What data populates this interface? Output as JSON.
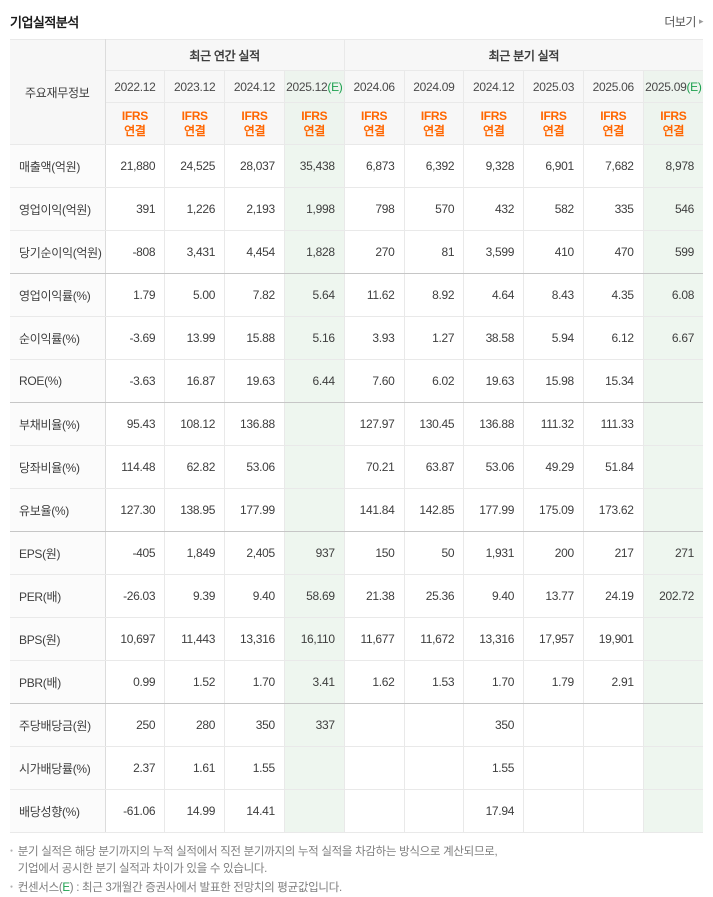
{
  "page": {
    "title": "기업실적분석",
    "more_label": "더보기",
    "more_arrow": "▸"
  },
  "colors": {
    "accent_orange": "#ff6600",
    "estimate_green": "#1ca04e",
    "estimate_bg": "#eef6ef",
    "negative_red": "#ff0000",
    "header_bg": "#f7f7f7"
  },
  "table": {
    "corner_header": "주요재무정보",
    "groups": [
      {
        "label": "최근 연간 실적",
        "span": 4
      },
      {
        "label": "최근 분기 실적",
        "span": 6
      }
    ],
    "ifrs_lines": [
      "IFRS",
      "연결"
    ],
    "columns": [
      {
        "period": "2022.12",
        "suffix": "",
        "estimate": false
      },
      {
        "period": "2023.12",
        "suffix": "",
        "estimate": false
      },
      {
        "period": "2024.12",
        "suffix": "",
        "estimate": false
      },
      {
        "period": "2025.12",
        "suffix": "(E)",
        "estimate": true
      },
      {
        "period": "2024.06",
        "suffix": "",
        "estimate": false
      },
      {
        "period": "2024.09",
        "suffix": "",
        "estimate": false
      },
      {
        "period": "2024.12",
        "suffix": "",
        "estimate": false
      },
      {
        "period": "2025.03",
        "suffix": "",
        "estimate": false
      },
      {
        "period": "2025.06",
        "suffix": "",
        "estimate": false
      },
      {
        "period": "2025.09",
        "suffix": "(E)",
        "estimate": true
      }
    ],
    "rows": [
      {
        "label": "매출액(억원)",
        "group_end": false,
        "values": [
          "21,880",
          "24,525",
          "28,037",
          "35,438",
          "6,873",
          "6,392",
          "9,328",
          "6,901",
          "7,682",
          "8,978"
        ]
      },
      {
        "label": "영업이익(억원)",
        "group_end": false,
        "values": [
          "391",
          "1,226",
          "2,193",
          "1,998",
          "798",
          "570",
          "432",
          "582",
          "335",
          "546"
        ]
      },
      {
        "label": "당기순이익(억원)",
        "group_end": true,
        "values": [
          "-808",
          "3,431",
          "4,454",
          "1,828",
          "270",
          "81",
          "3,599",
          "410",
          "470",
          "599"
        ]
      },
      {
        "label": "영업이익률(%)",
        "group_end": false,
        "values": [
          "1.79",
          "5.00",
          "7.82",
          "5.64",
          "11.62",
          "8.92",
          "4.64",
          "8.43",
          "4.35",
          "6.08"
        ]
      },
      {
        "label": "순이익률(%)",
        "group_end": false,
        "values": [
          "-3.69",
          "13.99",
          "15.88",
          "5.16",
          "3.93",
          "1.27",
          "38.58",
          "5.94",
          "6.12",
          "6.67"
        ]
      },
      {
        "label": "ROE(%)",
        "group_end": true,
        "values": [
          "-3.63",
          "16.87",
          "19.63",
          "6.44",
          "7.60",
          "6.02",
          "19.63",
          "15.98",
          "15.34",
          ""
        ]
      },
      {
        "label": "부채비율(%)",
        "group_end": false,
        "values": [
          "95.43",
          "108.12",
          "136.88",
          "",
          "127.97",
          "130.45",
          "136.88",
          "111.32",
          "111.33",
          ""
        ]
      },
      {
        "label": "당좌비율(%)",
        "group_end": false,
        "values": [
          "114.48",
          "62.82",
          "53.06",
          "",
          "70.21",
          "63.87",
          "53.06",
          "49.29",
          "51.84",
          ""
        ]
      },
      {
        "label": "유보율(%)",
        "group_end": true,
        "values": [
          "127.30",
          "138.95",
          "177.99",
          "",
          "141.84",
          "142.85",
          "177.99",
          "175.09",
          "173.62",
          ""
        ]
      },
      {
        "label": "EPS(원)",
        "group_end": false,
        "values": [
          "-405",
          "1,849",
          "2,405",
          "937",
          "150",
          "50",
          "1,931",
          "200",
          "217",
          "271"
        ]
      },
      {
        "label": "PER(배)",
        "group_end": false,
        "values": [
          "-26.03",
          "9.39",
          "9.40",
          "58.69",
          "21.38",
          "25.36",
          "9.40",
          "13.77",
          "24.19",
          "202.72"
        ]
      },
      {
        "label": "BPS(원)",
        "group_end": false,
        "values": [
          "10,697",
          "11,443",
          "13,316",
          "16,110",
          "11,677",
          "11,672",
          "13,316",
          "17,957",
          "19,901",
          ""
        ]
      },
      {
        "label": "PBR(배)",
        "group_end": true,
        "values": [
          "0.99",
          "1.52",
          "1.70",
          "3.41",
          "1.62",
          "1.53",
          "1.70",
          "1.79",
          "2.91",
          ""
        ]
      },
      {
        "label": "주당배당금(원)",
        "group_end": false,
        "values": [
          "250",
          "280",
          "350",
          "337",
          "",
          "",
          "350",
          "",
          "",
          ""
        ]
      },
      {
        "label": "시가배당률(%)",
        "group_end": false,
        "values": [
          "2.37",
          "1.61",
          "1.55",
          "",
          "",
          "",
          "1.55",
          "",
          "",
          ""
        ]
      },
      {
        "label": "배당성향(%)",
        "group_end": false,
        "values": [
          "-61.06",
          "14.99",
          "14.41",
          "",
          "",
          "",
          "17.94",
          "",
          "",
          ""
        ]
      }
    ]
  },
  "footnotes": {
    "note1_lines": [
      "분기 실적은 해당 분기까지의 누적 실적에서 직전 분기까지의 누적 실적을 차감하는 방식으로 계산되므로,",
      "기업에서 공시한 분기 실적과 차이가 있을 수 있습니다."
    ],
    "note2": {
      "pre": "컨센서스(",
      "e": "E",
      "post": ") : 최근 3개월간 증권사에서 발표한 전망치의 평균값입니다."
    }
  }
}
